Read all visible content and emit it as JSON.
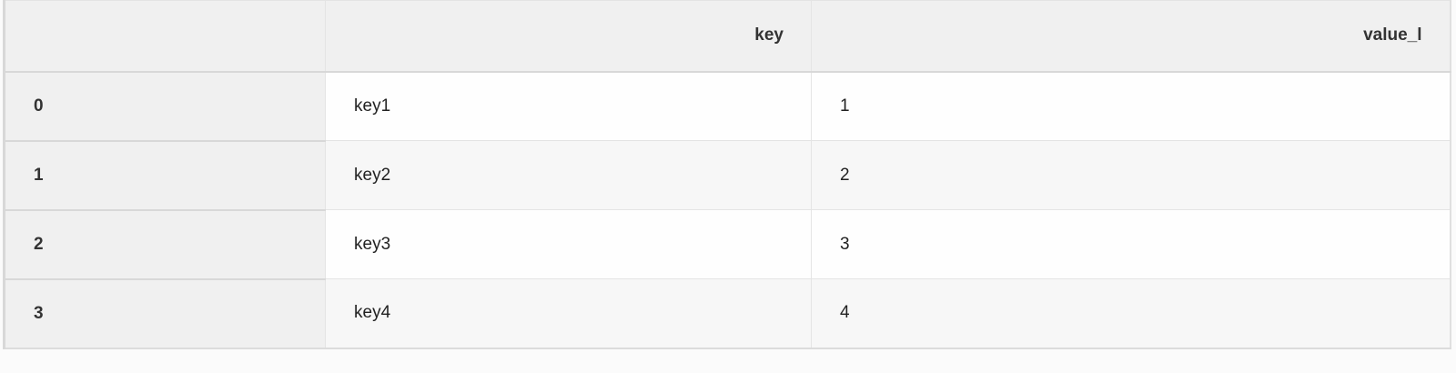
{
  "table": {
    "columns": [
      "",
      "key",
      "value_l"
    ],
    "rows": [
      {
        "index": "0",
        "key": "key1",
        "value_l": "1"
      },
      {
        "index": "1",
        "key": "key2",
        "value_l": "2"
      },
      {
        "index": "2",
        "key": "key3",
        "value_l": "3"
      },
      {
        "index": "3",
        "key": "key4",
        "value_l": "4"
      }
    ]
  }
}
